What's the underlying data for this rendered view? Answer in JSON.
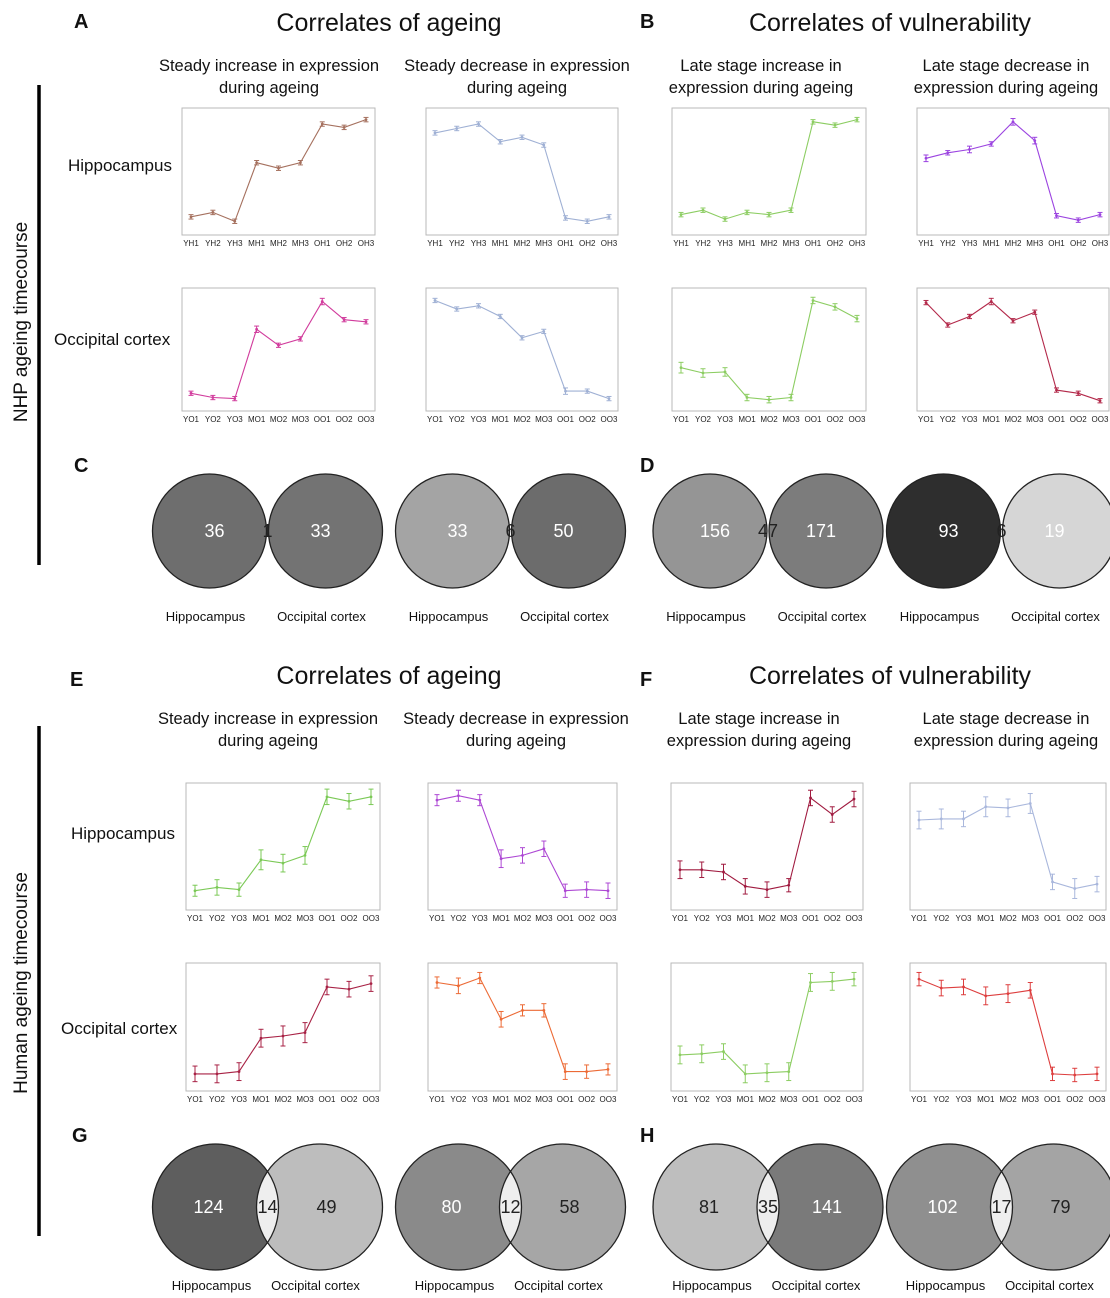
{
  "panel_letters": {
    "A": "A",
    "B": "B",
    "C": "C",
    "D": "D",
    "E": "E",
    "F": "F",
    "G": "G",
    "H": "H"
  },
  "headings": {
    "ageing": "Correlates of ageing",
    "vulnerability": "Correlates of vulnerability"
  },
  "subtitles": {
    "steady_increase": [
      "Steady increase in expression",
      "during ageing"
    ],
    "steady_decrease": [
      "Steady decrease in expression",
      "during ageing"
    ],
    "late_increase": [
      "Late stage increase in",
      "expression during ageing"
    ],
    "late_decrease": [
      "Late stage decrease in",
      "expression during ageing"
    ]
  },
  "row_labels": {
    "hippocampus": "Hippocampus",
    "occipital": "Occipital cortex"
  },
  "side_labels": {
    "nhp": "NHP ageing timecourse",
    "human": "Human ageing timecourse"
  },
  "venn_labels": {
    "left": "Hippocampus",
    "right": "Occipital cortex"
  },
  "chart_data": [
    {
      "type": "line",
      "section": "NHP",
      "pattern": "steady_increase",
      "region": "Hippocampus",
      "color": "#a5705e",
      "categories": [
        "YH1",
        "YH2",
        "YH3",
        "MH1",
        "MH2",
        "MH3",
        "OH1",
        "OH2",
        "OH3"
      ],
      "values": [
        0.11,
        0.15,
        0.07,
        0.6,
        0.55,
        0.6,
        0.95,
        0.92,
        0.99
      ],
      "errors": [
        0.02,
        0.02,
        0.02,
        0.02,
        0.02,
        0.02,
        0.02,
        0.02,
        0.02
      ],
      "ylim": [
        0,
        1.05
      ]
    },
    {
      "type": "line",
      "section": "NHP",
      "pattern": "steady_decrease",
      "region": "Hippocampus",
      "color": "#9fb0d4",
      "categories": [
        "YH1",
        "YH2",
        "YH3",
        "MH1",
        "MH2",
        "MH3",
        "OH1",
        "OH2",
        "OH3"
      ],
      "values": [
        0.87,
        0.91,
        0.95,
        0.79,
        0.83,
        0.76,
        0.1,
        0.07,
        0.11
      ],
      "errors": [
        0.02,
        0.02,
        0.02,
        0.02,
        0.02,
        0.02,
        0.02,
        0.02,
        0.02
      ],
      "ylim": [
        0,
        1.05
      ]
    },
    {
      "type": "line",
      "section": "NHP",
      "pattern": "late_increase",
      "region": "Hippocampus",
      "color": "#8ccd62",
      "categories": [
        "YH1",
        "YH2",
        "YH3",
        "MH1",
        "MH2",
        "MH3",
        "OH1",
        "OH2",
        "OH3"
      ],
      "values": [
        0.13,
        0.17,
        0.09,
        0.15,
        0.13,
        0.17,
        0.97,
        0.94,
        0.99
      ],
      "errors": [
        0.02,
        0.02,
        0.02,
        0.02,
        0.02,
        0.02,
        0.02,
        0.02,
        0.02
      ],
      "ylim": [
        0,
        1.05
      ]
    },
    {
      "type": "line",
      "section": "NHP",
      "pattern": "late_decrease",
      "region": "Hippocampus",
      "color": "#9b43e0",
      "categories": [
        "YH1",
        "YH2",
        "YH3",
        "MH1",
        "MH2",
        "MH3",
        "OH1",
        "OH2",
        "OH3"
      ],
      "values": [
        0.64,
        0.69,
        0.72,
        0.77,
        0.97,
        0.8,
        0.12,
        0.08,
        0.13
      ],
      "errors": [
        0.03,
        0.02,
        0.03,
        0.02,
        0.03,
        0.03,
        0.02,
        0.02,
        0.02
      ],
      "ylim": [
        0,
        1.05
      ]
    },
    {
      "type": "line",
      "section": "NHP",
      "pattern": "steady_increase",
      "region": "Occipital cortex",
      "color": "#d13b9c",
      "categories": [
        "YO1",
        "YO2",
        "YO3",
        "MO1",
        "MO2",
        "MO3",
        "OO1",
        "OO2",
        "OO3"
      ],
      "values": [
        0.11,
        0.07,
        0.06,
        0.71,
        0.56,
        0.62,
        0.97,
        0.8,
        0.78
      ],
      "errors": [
        0.02,
        0.02,
        0.02,
        0.03,
        0.02,
        0.02,
        0.03,
        0.02,
        0.02
      ],
      "ylim": [
        0,
        1.05
      ]
    },
    {
      "type": "line",
      "section": "NHP",
      "pattern": "steady_decrease",
      "region": "Occipital cortex",
      "color": "#9fb0d4",
      "categories": [
        "YO1",
        "YO2",
        "YO3",
        "MO1",
        "MO2",
        "MO3",
        "OO1",
        "OO2",
        "OO3"
      ],
      "values": [
        0.98,
        0.9,
        0.93,
        0.83,
        0.63,
        0.69,
        0.13,
        0.13,
        0.06
      ],
      "errors": [
        0.02,
        0.02,
        0.02,
        0.02,
        0.02,
        0.02,
        0.03,
        0.02,
        0.02
      ],
      "ylim": [
        0,
        1.05
      ]
    },
    {
      "type": "line",
      "section": "NHP",
      "pattern": "late_increase",
      "region": "Occipital cortex",
      "color": "#8ccd62",
      "categories": [
        "YO1",
        "YO2",
        "YO3",
        "MO1",
        "MO2",
        "MO3",
        "OO1",
        "OO2",
        "OO3"
      ],
      "values": [
        0.35,
        0.3,
        0.31,
        0.07,
        0.05,
        0.07,
        0.98,
        0.92,
        0.81
      ],
      "errors": [
        0.05,
        0.04,
        0.04,
        0.03,
        0.03,
        0.03,
        0.03,
        0.03,
        0.03
      ],
      "ylim": [
        0,
        1.05
      ]
    },
    {
      "type": "line",
      "section": "NHP",
      "pattern": "late_decrease",
      "region": "Occipital cortex",
      "color": "#b3294a",
      "categories": [
        "YO1",
        "YO2",
        "YO3",
        "MO1",
        "MO2",
        "MO3",
        "OO1",
        "OO2",
        "OO3"
      ],
      "values": [
        0.96,
        0.75,
        0.83,
        0.97,
        0.79,
        0.87,
        0.14,
        0.11,
        0.04
      ],
      "errors": [
        0.02,
        0.02,
        0.02,
        0.03,
        0.02,
        0.02,
        0.02,
        0.02,
        0.02
      ],
      "ylim": [
        0,
        1.05
      ]
    },
    {
      "type": "line",
      "section": "Human",
      "pattern": "steady_increase",
      "region": "Hippocampus",
      "color": "#7bc956",
      "categories": [
        "YO1",
        "YO2",
        "YO3",
        "MO1",
        "MO2",
        "MO3",
        "OO1",
        "OO2",
        "OO3"
      ],
      "values": [
        0.12,
        0.15,
        0.13,
        0.4,
        0.37,
        0.44,
        0.97,
        0.93,
        0.97
      ],
      "errors": [
        0.05,
        0.07,
        0.06,
        0.09,
        0.08,
        0.08,
        0.07,
        0.07,
        0.07
      ],
      "ylim": [
        0,
        1.05
      ]
    },
    {
      "type": "line",
      "section": "Human",
      "pattern": "steady_decrease",
      "region": "Hippocampus",
      "color": "#ad48d4",
      "categories": [
        "YO1",
        "YO2",
        "YO3",
        "MO1",
        "MO2",
        "MO3",
        "OO1",
        "OO2",
        "OO3"
      ],
      "values": [
        0.94,
        0.98,
        0.94,
        0.41,
        0.44,
        0.5,
        0.12,
        0.13,
        0.12
      ],
      "errors": [
        0.05,
        0.05,
        0.05,
        0.08,
        0.07,
        0.07,
        0.06,
        0.07,
        0.07
      ],
      "ylim": [
        0,
        1.05
      ]
    },
    {
      "type": "line",
      "section": "Human",
      "pattern": "late_increase",
      "region": "Hippocampus",
      "color": "#a01a3f",
      "categories": [
        "YO1",
        "YO2",
        "YO3",
        "MO1",
        "MO2",
        "MO3",
        "OO1",
        "OO2",
        "OO3"
      ],
      "values": [
        0.31,
        0.31,
        0.29,
        0.16,
        0.13,
        0.17,
        0.96,
        0.81,
        0.95
      ],
      "errors": [
        0.08,
        0.07,
        0.07,
        0.07,
        0.07,
        0.06,
        0.07,
        0.07,
        0.07
      ],
      "ylim": [
        0,
        1.05
      ]
    },
    {
      "type": "line",
      "section": "Human",
      "pattern": "late_decrease",
      "region": "Hippocampus",
      "color": "#a9b7dc",
      "categories": [
        "YO1",
        "YO2",
        "YO3",
        "MO1",
        "MO2",
        "MO3",
        "OO1",
        "OO2",
        "OO3"
      ],
      "values": [
        0.76,
        0.77,
        0.77,
        0.88,
        0.87,
        0.91,
        0.2,
        0.14,
        0.18
      ],
      "errors": [
        0.08,
        0.09,
        0.07,
        0.09,
        0.08,
        0.09,
        0.07,
        0.09,
        0.07
      ],
      "ylim": [
        0,
        1.05
      ]
    },
    {
      "type": "line",
      "section": "Human",
      "pattern": "steady_increase",
      "region": "Occipital cortex",
      "color": "#a82245",
      "categories": [
        "YO1",
        "YO2",
        "YO3",
        "MO1",
        "MO2",
        "MO3",
        "OO1",
        "OO2",
        "OO3"
      ],
      "values": [
        0.1,
        0.1,
        0.12,
        0.42,
        0.44,
        0.47,
        0.88,
        0.86,
        0.91
      ],
      "errors": [
        0.07,
        0.08,
        0.08,
        0.08,
        0.09,
        0.09,
        0.07,
        0.07,
        0.07
      ],
      "ylim": [
        0,
        1.05
      ]
    },
    {
      "type": "line",
      "section": "Human",
      "pattern": "steady_decrease",
      "region": "Occipital cortex",
      "color": "#ec6a35",
      "categories": [
        "YO1",
        "YO2",
        "YO3",
        "MO1",
        "MO2",
        "MO3",
        "OO1",
        "OO2",
        "OO3"
      ],
      "values": [
        0.92,
        0.89,
        0.96,
        0.59,
        0.67,
        0.67,
        0.12,
        0.12,
        0.14
      ],
      "errors": [
        0.05,
        0.07,
        0.05,
        0.07,
        0.05,
        0.06,
        0.07,
        0.06,
        0.05
      ],
      "ylim": [
        0,
        1.05
      ]
    },
    {
      "type": "line",
      "section": "Human",
      "pattern": "late_increase",
      "region": "Occipital cortex",
      "color": "#8ccd62",
      "categories": [
        "YO1",
        "YO2",
        "YO3",
        "MO1",
        "MO2",
        "MO3",
        "OO1",
        "OO2",
        "OO3"
      ],
      "values": [
        0.27,
        0.28,
        0.3,
        0.1,
        0.11,
        0.12,
        0.92,
        0.93,
        0.95
      ],
      "errors": [
        0.08,
        0.08,
        0.07,
        0.08,
        0.08,
        0.08,
        0.08,
        0.08,
        0.06
      ],
      "ylim": [
        0,
        1.05
      ]
    },
    {
      "type": "line",
      "section": "Human",
      "pattern": "late_decrease",
      "region": "Occipital cortex",
      "color": "#dd3e3e",
      "categories": [
        "YO1",
        "YO2",
        "YO3",
        "MO1",
        "MO2",
        "MO3",
        "OO1",
        "OO2",
        "OO3"
      ],
      "values": [
        0.95,
        0.87,
        0.88,
        0.8,
        0.82,
        0.85,
        0.1,
        0.09,
        0.1
      ],
      "errors": [
        0.06,
        0.07,
        0.07,
        0.08,
        0.08,
        0.07,
        0.06,
        0.06,
        0.06
      ],
      "ylim": [
        0,
        1.05
      ]
    }
  ],
  "venns": [
    {
      "panel": "C",
      "pattern": "steady_increase",
      "left": "36",
      "overlap": "1",
      "right": "33",
      "left_color": "#6e6e6e",
      "right_color": "#737373",
      "overlap_color": "#f8f8f8",
      "left_text": "#ffffff",
      "overlap_text": "#222222",
      "right_text": "#ffffff"
    },
    {
      "panel": "C",
      "pattern": "steady_decrease",
      "left": "33",
      "overlap": "6",
      "right": "50",
      "left_color": "#a4a4a4",
      "right_color": "#6c6c6c",
      "overlap_color": "#ececec",
      "left_text": "#ffffff",
      "overlap_text": "#222222",
      "right_text": "#ffffff"
    },
    {
      "panel": "D",
      "pattern": "late_increase",
      "left": "156",
      "overlap": "47",
      "right": "171",
      "left_color": "#959595",
      "right_color": "#7c7c7c",
      "overlap_color": "#e0e0e0",
      "left_text": "#ffffff",
      "overlap_text": "#222222",
      "right_text": "#ffffff"
    },
    {
      "panel": "D",
      "pattern": "late_decrease",
      "left": "93",
      "overlap": "6",
      "right": "19",
      "left_color": "#2e2e2e",
      "right_color": "#d6d6d6",
      "overlap_color": "#f2f2f2",
      "left_text": "#ffffff",
      "overlap_text": "#222222",
      "right_text": "#ffffff"
    },
    {
      "panel": "G",
      "pattern": "steady_increase",
      "left": "124",
      "overlap": "14",
      "right": "49",
      "left_color": "#5e5e5e",
      "right_color": "#bdbdbd",
      "overlap_color": "#eeeeee",
      "left_text": "#ffffff",
      "overlap_text": "#222222",
      "right_text": "#222222"
    },
    {
      "panel": "G",
      "pattern": "steady_decrease",
      "left": "80",
      "overlap": "12",
      "right": "58",
      "left_color": "#8a8a8a",
      "right_color": "#a6a6a6",
      "overlap_color": "#eeeeee",
      "left_text": "#ffffff",
      "overlap_text": "#222222",
      "right_text": "#222222"
    },
    {
      "panel": "H",
      "pattern": "late_increase",
      "left": "81",
      "overlap": "35",
      "right": "141",
      "left_color": "#bebebe",
      "right_color": "#7a7a7a",
      "overlap_color": "#eeeeee",
      "left_text": "#222222",
      "overlap_text": "#222222",
      "right_text": "#ffffff"
    },
    {
      "panel": "H",
      "pattern": "late_decrease",
      "left": "102",
      "overlap": "17",
      "right": "79",
      "left_color": "#8f8f8f",
      "right_color": "#a4a4a4",
      "overlap_color": "#eeeeee",
      "left_text": "#ffffff",
      "overlap_text": "#222222",
      "right_text": "#222222"
    }
  ]
}
